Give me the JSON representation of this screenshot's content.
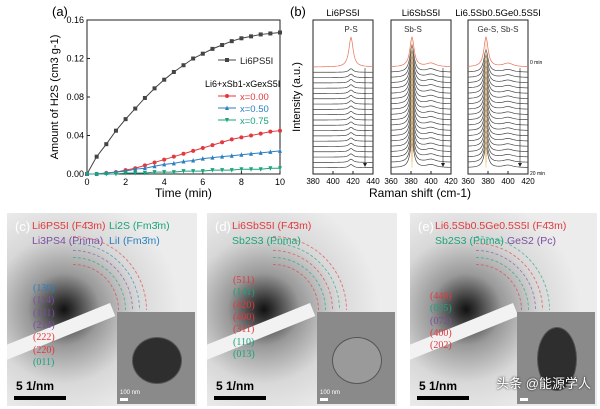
{
  "chart_data": [
    {
      "type": "line",
      "panel": "(a)",
      "xlabel": "Time (min)",
      "ylabel": "Amount of H2S (cm3 g-1)",
      "xlim": [
        0,
        10
      ],
      "ylim": [
        0,
        0.16
      ],
      "xticks": [
        "0",
        "2",
        "4",
        "6",
        "8",
        "10"
      ],
      "yticks": [
        "0.00",
        "0.04",
        "0.08",
        "0.12",
        "0.16"
      ],
      "x": [
        0,
        0.5,
        1,
        1.5,
        2,
        2.5,
        3,
        3.5,
        4,
        4.5,
        5,
        5.5,
        6,
        6.5,
        7,
        7.5,
        8,
        8.5,
        9,
        9.5,
        10
      ],
      "legend_group": "Li6+xSb1-xGexS5I",
      "series": [
        {
          "name": "Li6PS5I",
          "color": "#444444",
          "marker": "square",
          "values": [
            0,
            0.018,
            0.031,
            0.045,
            0.057,
            0.068,
            0.079,
            0.089,
            0.098,
            0.106,
            0.113,
            0.12,
            0.125,
            0.13,
            0.134,
            0.138,
            0.141,
            0.143,
            0.145,
            0.146,
            0.147
          ]
        },
        {
          "name": "x=0.00",
          "color": "#e0393e",
          "marker": "circle",
          "values": [
            0,
            0,
            0.001,
            0.002,
            0.004,
            0.006,
            0.009,
            0.012,
            0.015,
            0.018,
            0.021,
            0.024,
            0.027,
            0.03,
            0.033,
            0.036,
            0.038,
            0.04,
            0.042,
            0.044,
            0.045
          ]
        },
        {
          "name": "x=0.50",
          "color": "#2a7fc1",
          "marker": "triangle-up",
          "values": [
            0,
            0,
            0.001,
            0.002,
            0.003,
            0.005,
            0.006,
            0.008,
            0.01,
            0.011,
            0.013,
            0.014,
            0.016,
            0.017,
            0.018,
            0.019,
            0.02,
            0.021,
            0.022,
            0.023,
            0.024
          ]
        },
        {
          "name": "x=0.75",
          "color": "#1aa37a",
          "marker": "triangle-down",
          "values": [
            0,
            0,
            0,
            0,
            0.001,
            0.001,
            0.001,
            0.002,
            0.002,
            0.002,
            0.003,
            0.003,
            0.003,
            0.004,
            0.004,
            0.004,
            0.005,
            0.005,
            0.005,
            0.006,
            0.006
          ]
        }
      ]
    },
    {
      "type": "line",
      "panel": "(b)",
      "xlabel": "Raman shift (cm-1)",
      "ylabel": "Intensity (a.u.)",
      "n_spectra": 20,
      "time_start": "0 min",
      "time_end": "20 min",
      "subplots": [
        {
          "title": "Li6PS5I",
          "peak_label": "P-S",
          "xlim": [
            380,
            440
          ],
          "xticks": [
            "380",
            "400",
            "420",
            "440"
          ],
          "peaks": [
            418
          ],
          "peak_height_first": 1.0,
          "peak_height_rest": 0.12
        },
        {
          "title": "Li6SbS5I",
          "peak_label": "Sb-S",
          "xlim": [
            360,
            420
          ],
          "xticks": [
            "360",
            "380",
            "400",
            "420"
          ],
          "peaks": [
            381,
            400
          ],
          "peak_height_first": 1.0,
          "peak_height_rest": 0.9
        },
        {
          "title": "Li6.5Sb0.5Ge0.5S5I",
          "peak_label": "Ge-S, Sb-S",
          "xlim": [
            360,
            420
          ],
          "xticks": [
            "360",
            "380",
            "400",
            "420"
          ],
          "peaks": [
            378,
            400
          ],
          "peak_height_first": 1.0,
          "peak_height_rest": 0.75
        }
      ]
    }
  ],
  "panels": {
    "c": {
      "label": "(c)",
      "phases": [
        {
          "t": "Li6PS5I (F4̄3m)",
          "c": "#e0393e"
        },
        {
          "t": "Li2S (Fm3̄m)",
          "c": "#1aa37a"
        },
        {
          "t": "Li3PS4 (Pnma)",
          "c": "#7a4fa0"
        },
        {
          "t": "LiI (Fm3̄m)",
          "c": "#2a7fc1"
        }
      ],
      "hkl": [
        {
          "t": "(130)",
          "c": "#2a7fc1"
        },
        {
          "t": "(114)",
          "c": "#7a4fa0"
        },
        {
          "t": "(131)",
          "c": "#7a4fa0"
        },
        {
          "t": "(214)",
          "c": "#7a4fa0"
        },
        {
          "t": "(222)",
          "c": "#e0393e"
        },
        {
          "t": "(220)",
          "c": "#e0393e"
        },
        {
          "t": "(011)",
          "c": "#1aa37a"
        }
      ],
      "scale": "5 1/nm",
      "inset_scale": "100 nm"
    },
    "d": {
      "label": "(d)",
      "phases": [
        {
          "t": "Li6SbS5I (F4̄3m)",
          "c": "#e0393e"
        },
        {
          "t": "Sb2S3 (Pnma)",
          "c": "#1aa37a"
        }
      ],
      "hkl": [
        {
          "t": "(511)",
          "c": "#e0393e"
        },
        {
          "t": "(141)",
          "c": "#1aa37a"
        },
        {
          "t": "(420)",
          "c": "#e0393e"
        },
        {
          "t": "(400)",
          "c": "#e0393e"
        },
        {
          "t": "(311)",
          "c": "#e0393e"
        },
        {
          "t": "(110)",
          "c": "#1aa37a"
        },
        {
          "t": "(013)",
          "c": "#1aa37a"
        }
      ],
      "scale": "5 1/nm",
      "inset_scale": "100 nm"
    },
    "e": {
      "label": "(e)",
      "phases": [
        {
          "t": "Li6.5Sb0.5Ge0.5S5I (F4̄3m)",
          "c": "#e0393e"
        },
        {
          "t": "Sb2S3 (Pnma)",
          "c": "#1aa37a"
        },
        {
          "t": "GeS2 (Pc)",
          "c": "#7a4fa0"
        }
      ],
      "hkl": [
        {
          "t": "(440)",
          "c": "#e0393e"
        },
        {
          "t": "(025)",
          "c": "#1aa37a"
        },
        {
          "t": "(072)",
          "c": "#7a4fa0"
        },
        {
          "t": "(400)",
          "c": "#e0393e"
        },
        {
          "t": "(202)",
          "c": "#e0393e"
        }
      ],
      "scale": "5 1/nm"
    }
  },
  "watermark": "头条 @能源学人"
}
